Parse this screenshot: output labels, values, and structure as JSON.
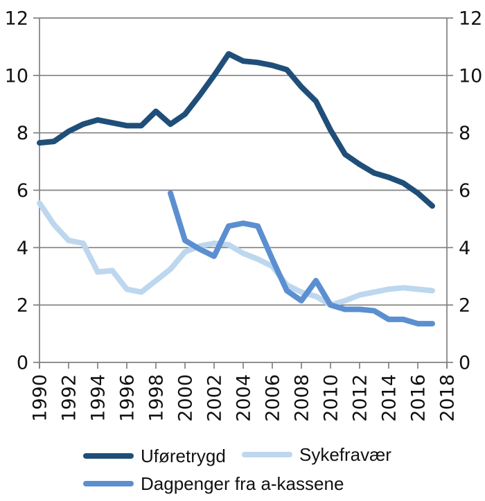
{
  "chart_data": {
    "type": "line",
    "x": [
      1990,
      1991,
      1992,
      1993,
      1994,
      1995,
      1996,
      1997,
      1998,
      1999,
      2000,
      2001,
      2002,
      2003,
      2004,
      2005,
      2006,
      2007,
      2008,
      2009,
      2010,
      2011,
      2012,
      2013,
      2014,
      2015,
      2016,
      2017
    ],
    "series": [
      {
        "name": "Uføretrygd",
        "color": "#1F4E79",
        "values": [
          7.65,
          7.7,
          8.05,
          8.3,
          8.45,
          8.35,
          8.25,
          8.25,
          8.75,
          8.3,
          8.65,
          9.3,
          10.0,
          10.75,
          10.5,
          10.45,
          10.35,
          10.2,
          9.6,
          9.1,
          8.1,
          7.25,
          6.9,
          6.6,
          6.45,
          6.25,
          5.9,
          5.45
        ]
      },
      {
        "name": "Sykefravær",
        "color": "#BDD7EE",
        "values": [
          5.55,
          4.8,
          4.25,
          4.15,
          3.15,
          3.2,
          2.55,
          2.45,
          2.85,
          3.25,
          3.85,
          4.05,
          4.15,
          4.1,
          3.8,
          3.6,
          3.35,
          2.7,
          2.45,
          2.3,
          2.0,
          2.15,
          2.35,
          2.45,
          2.55,
          2.6,
          2.55,
          2.5
        ]
      },
      {
        "name": "Dagpenger fra a-kassene",
        "color": "#5B8FD0",
        "values": [
          null,
          null,
          null,
          null,
          null,
          null,
          null,
          null,
          null,
          5.9,
          4.25,
          3.95,
          3.7,
          4.75,
          4.85,
          4.75,
          3.6,
          2.5,
          2.15,
          2.85,
          2.0,
          1.85,
          1.85,
          1.8,
          1.5,
          1.5,
          1.35,
          1.35
        ]
      }
    ],
    "xlim": [
      1990,
      2018
    ],
    "ylim": [
      0,
      12
    ],
    "yticks": [
      0,
      2,
      4,
      6,
      8,
      10,
      12
    ],
    "xticks": [
      1990,
      1992,
      1994,
      1996,
      1998,
      2000,
      2002,
      2004,
      2006,
      2008,
      2010,
      2012,
      2014,
      2016,
      2018
    ],
    "grid": true,
    "y_axis_right": true,
    "legend_position": "bottom",
    "draw_order": [
      1,
      2,
      0
    ],
    "line_width": 8,
    "axis_color": "#808080",
    "label_color": "#111111"
  }
}
